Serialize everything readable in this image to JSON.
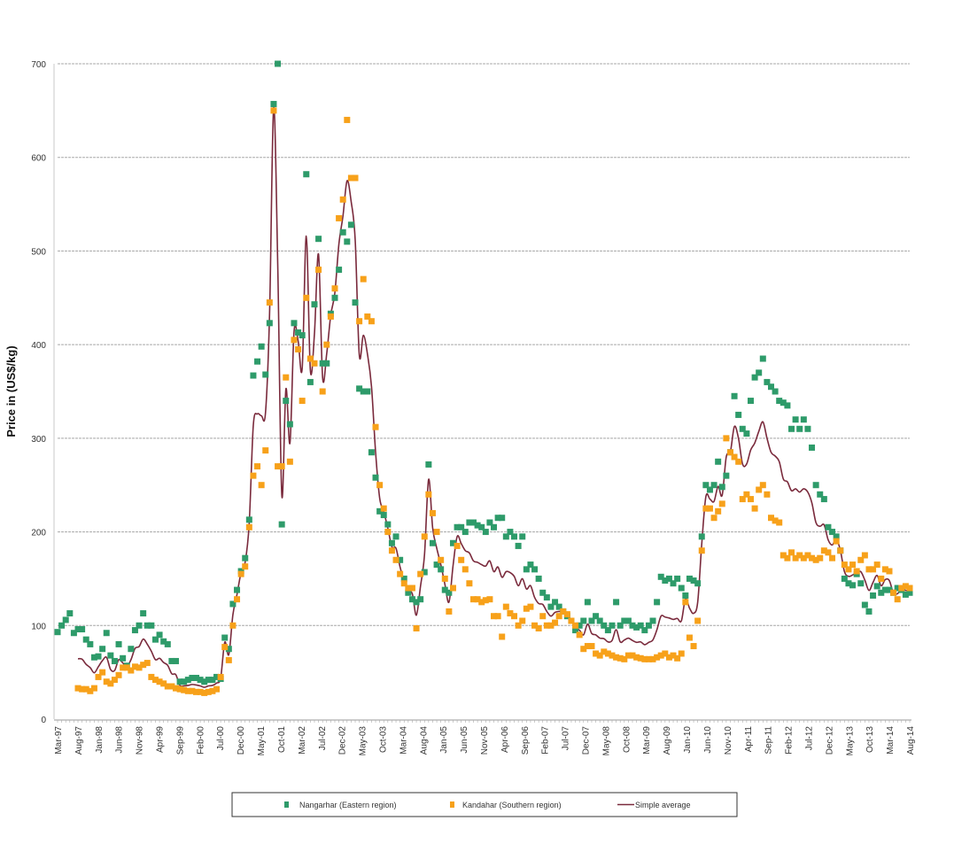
{
  "chart_data": {
    "type": "scatter",
    "title": "",
    "xlabel": "",
    "ylabel": "Price in (US$/kg)",
    "ylim": [
      0,
      700
    ],
    "y_ticks": [
      0,
      100,
      200,
      300,
      400,
      500,
      600,
      700
    ],
    "grid": true,
    "legend_position": "bottom",
    "x_tick_labels": [
      "Mar-97",
      "Aug-97",
      "Jan-98",
      "Jun-98",
      "Nov-98",
      "Apr-99",
      "Sep-99",
      "Feb-00",
      "Jul-00",
      "Dec-00",
      "May-01",
      "Oct-01",
      "Mar-02",
      "Jul-02",
      "Dec-02",
      "May-03",
      "Oct-03",
      "Mar-04",
      "Aug-04",
      "Jan-05",
      "Jun-05",
      "Nov-05",
      "Apr-06",
      "Sep-06",
      "Feb-07",
      "Jul-07",
      "Dec-07",
      "May-08",
      "Oct-08",
      "Mar-09",
      "Aug-09",
      "Jan-10",
      "Jun-10",
      "Nov-10",
      "Apr-11",
      "Sep-11",
      "Feb-12",
      "Jul-12",
      "Dec-12",
      "May-13",
      "Oct-13",
      "Mar-14",
      "Aug-14"
    ],
    "x": [
      "Mar-97",
      "Apr-97",
      "May-97",
      "Jun-97",
      "Jul-97",
      "Aug-97",
      "Sep-97",
      "Oct-97",
      "Nov-97",
      "Dec-97",
      "Jan-98",
      "Feb-98",
      "Mar-98",
      "Apr-98",
      "May-98",
      "Jun-98",
      "Jul-98",
      "Aug-98",
      "Sep-98",
      "Oct-98",
      "Nov-98",
      "Dec-98",
      "Jan-99",
      "Feb-99",
      "Mar-99",
      "Apr-99",
      "May-99",
      "Jun-99",
      "Jul-99",
      "Aug-99",
      "Sep-99",
      "Oct-99",
      "Nov-99",
      "Dec-99",
      "Jan-00",
      "Feb-00",
      "Mar-00",
      "Apr-00",
      "May-00",
      "Jun-00",
      "Jul-00",
      "Aug-00",
      "Sep-00",
      "Oct-00",
      "Nov-00",
      "Dec-00",
      "Jan-01",
      "Feb-01",
      "Mar-01",
      "Apr-01",
      "May-01",
      "Jun-01",
      "Jul-01",
      "Aug-01",
      "Sep-01",
      "Oct-01",
      "Nov-01",
      "Dec-01",
      "Jan-02",
      "Feb-02",
      "Mar-02",
      "Apr-02",
      "May-02",
      "Jun-02",
      "Jul-02",
      "Aug-02",
      "Sep-02",
      "Oct-02",
      "Nov-02",
      "Dec-02",
      "Jan-03",
      "Feb-03",
      "Mar-03",
      "Apr-03",
      "May-03",
      "Jun-03",
      "Jul-03",
      "Aug-03",
      "Sep-03",
      "Oct-03",
      "Nov-03",
      "Dec-03",
      "Jan-04",
      "Feb-04",
      "Mar-04",
      "Apr-04",
      "May-04",
      "Jun-04",
      "Jul-04",
      "Aug-04",
      "Sep-04",
      "Oct-04",
      "Nov-04",
      "Dec-04",
      "Jan-05",
      "Feb-05",
      "Mar-05",
      "Apr-05",
      "May-05",
      "Jun-05",
      "Jul-05",
      "Aug-05",
      "Sep-05",
      "Oct-05",
      "Nov-05",
      "Dec-05",
      "Jan-06",
      "Feb-06",
      "Mar-06",
      "Apr-06",
      "May-06",
      "Jun-06",
      "Jul-06",
      "Aug-06",
      "Sep-06",
      "Oct-06",
      "Nov-06",
      "Dec-06",
      "Jan-07",
      "Feb-07",
      "Mar-07",
      "Apr-07",
      "May-07",
      "Jun-07",
      "Jul-07",
      "Aug-07",
      "Sep-07",
      "Oct-07",
      "Nov-07",
      "Dec-07",
      "Jan-08",
      "Feb-08",
      "Mar-08",
      "Apr-08",
      "May-08",
      "Jun-08",
      "Jul-08",
      "Aug-08",
      "Sep-08",
      "Oct-08",
      "Nov-08",
      "Dec-08",
      "Jan-09",
      "Feb-09",
      "Mar-09",
      "Apr-09",
      "May-09",
      "Jun-09",
      "Jul-09",
      "Aug-09",
      "Sep-09",
      "Oct-09",
      "Nov-09",
      "Dec-09",
      "Jan-10",
      "Feb-10",
      "Mar-10",
      "Apr-10",
      "May-10",
      "Jun-10",
      "Jul-10",
      "Aug-10",
      "Sep-10",
      "Oct-10",
      "Nov-10",
      "Dec-10",
      "Jan-11",
      "Feb-11",
      "Mar-11",
      "Apr-11",
      "May-11",
      "Jun-11",
      "Jul-11",
      "Aug-11",
      "Sep-11",
      "Oct-11",
      "Nov-11",
      "Dec-11",
      "Jan-12",
      "Feb-12",
      "Mar-12",
      "Apr-12",
      "May-12",
      "Jun-12",
      "Jul-12",
      "Aug-12",
      "Sep-12",
      "Oct-12",
      "Nov-12",
      "Dec-12",
      "Jan-13",
      "Feb-13",
      "Mar-13",
      "Apr-13",
      "May-13",
      "Jun-13",
      "Jul-13",
      "Aug-13",
      "Sep-13",
      "Oct-13",
      "Nov-13",
      "Dec-13",
      "Jan-14",
      "Feb-14",
      "Mar-14",
      "Apr-14",
      "May-14",
      "Jun-14",
      "Jul-14",
      "Aug-14"
    ],
    "series": [
      {
        "name": "Nangarhar (Eastern region)",
        "type": "scatter",
        "color": "#2e9b6a",
        "values": [
          93,
          100,
          106,
          113,
          92,
          96,
          96,
          85,
          80,
          66,
          67,
          75,
          92,
          68,
          62,
          80,
          65,
          57,
          75,
          95,
          100,
          113,
          100,
          100,
          85,
          90,
          83,
          80,
          62,
          62,
          40,
          40,
          42,
          44,
          44,
          42,
          40,
          42,
          42,
          45,
          43,
          87,
          75,
          123,
          138,
          158,
          172,
          213,
          367,
          382,
          398,
          368,
          423,
          657,
          700,
          208,
          340,
          315,
          423,
          413,
          410,
          582,
          360,
          443,
          513,
          380,
          380,
          433,
          450,
          480,
          520,
          510,
          528,
          445,
          353,
          350,
          350,
          285,
          258,
          222,
          218,
          208,
          188,
          195,
          170,
          150,
          135,
          128,
          125,
          128,
          157,
          272,
          188,
          165,
          160,
          138,
          135,
          188,
          205,
          205,
          200,
          210,
          210,
          207,
          205,
          200,
          210,
          205,
          215,
          215,
          195,
          200,
          195,
          185,
          195,
          160,
          165,
          160,
          150,
          135,
          130,
          120,
          125,
          120,
          115,
          110,
          105,
          95,
          100,
          105,
          125,
          105,
          110,
          105,
          100,
          95,
          100,
          125,
          100,
          105,
          105,
          100,
          98,
          100,
          95,
          100,
          105,
          125,
          152,
          148,
          150,
          145,
          150,
          140,
          132,
          150,
          148,
          145,
          195,
          250,
          245,
          250,
          275,
          248,
          260,
          285,
          345,
          325,
          310,
          305,
          340,
          365,
          370,
          385,
          360,
          355,
          350,
          340,
          338,
          335,
          310,
          320,
          310,
          320,
          310,
          290,
          250,
          240,
          235,
          205,
          200,
          195,
          180,
          150,
          145,
          143,
          155,
          145,
          122,
          115,
          132,
          142,
          135,
          138,
          138,
          135,
          140,
          138,
          133,
          135
        ]
      },
      {
        "name": "Kandahar (Southern region)",
        "type": "scatter",
        "color": "#f7a11a",
        "values": [
          null,
          null,
          null,
          null,
          null,
          33,
          32,
          32,
          30,
          33,
          45,
          50,
          40,
          38,
          42,
          47,
          55,
          55,
          52,
          56,
          55,
          58,
          60,
          45,
          42,
          40,
          38,
          35,
          35,
          33,
          32,
          31,
          30,
          30,
          29,
          29,
          28,
          29,
          30,
          32,
          45,
          77,
          63,
          100,
          128,
          155,
          163,
          205,
          260,
          270,
          250,
          287,
          445,
          650,
          270,
          270,
          365,
          275,
          405,
          395,
          340,
          450,
          385,
          380,
          480,
          350,
          400,
          430,
          460,
          535,
          555,
          640,
          578,
          578,
          425,
          470,
          430,
          425,
          312,
          250,
          225,
          200,
          180,
          170,
          155,
          145,
          140,
          140,
          97,
          155,
          195,
          240,
          220,
          200,
          170,
          150,
          115,
          140,
          185,
          170,
          160,
          145,
          128,
          128,
          125,
          127,
          128,
          110,
          110,
          88,
          120,
          113,
          110,
          100,
          105,
          118,
          120,
          100,
          97,
          110,
          100,
          100,
          103,
          110,
          115,
          112,
          105,
          100,
          90,
          75,
          78,
          78,
          70,
          68,
          72,
          70,
          68,
          66,
          65,
          64,
          68,
          68,
          66,
          65,
          64,
          64,
          64,
          66,
          68,
          70,
          66,
          68,
          65,
          70,
          125,
          87,
          78,
          105,
          180,
          225,
          225,
          215,
          222,
          230,
          300,
          285,
          280,
          275,
          235,
          240,
          235,
          225,
          245,
          250,
          240,
          215,
          212,
          210,
          175,
          172,
          178,
          172,
          175,
          172,
          175,
          172,
          170,
          172,
          180,
          178,
          172,
          190,
          180,
          165,
          160,
          165,
          158,
          170,
          175,
          160,
          160,
          165,
          150,
          160,
          158,
          135,
          128,
          140,
          142,
          140
        ]
      },
      {
        "name": "Simple average",
        "type": "line",
        "color": "#7a2a3c"
      }
    ]
  }
}
